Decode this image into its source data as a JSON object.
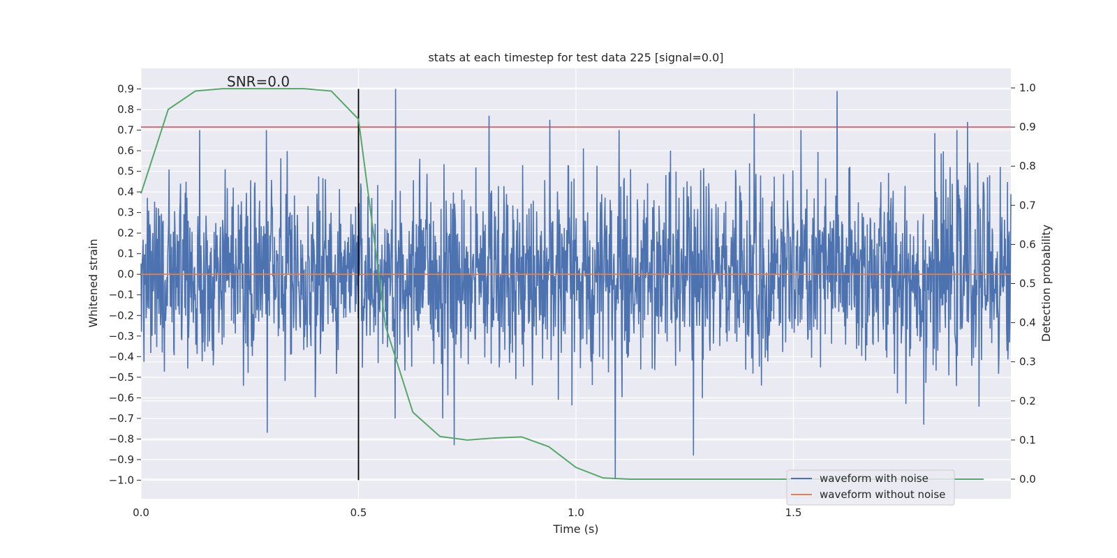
{
  "chart_data": {
    "type": "line",
    "title": "stats at each timestep for test data 225 [signal=0.0]",
    "xlabel": "Time (s)",
    "ylabel_left": "Whitened strain",
    "ylabel_right": "Detection probability",
    "annotation": "SNR=0.0",
    "xlim": [
      0.0,
      2.0
    ],
    "ylim_left": [
      -1.09,
      1.0
    ],
    "ylim_right": [
      -0.05,
      1.05
    ],
    "x_ticks": [
      0.0,
      0.5,
      1.0,
      1.5
    ],
    "x_tick_labels": [
      "0.0",
      "0.5",
      "1.0",
      "1.5"
    ],
    "y_left_ticks": [
      0.9,
      0.8,
      0.7,
      0.6,
      0.5,
      0.4,
      0.3,
      0.2,
      0.1,
      0.0,
      -0.1,
      -0.2,
      -0.3,
      -0.4,
      -0.5,
      -0.6,
      -0.7,
      -0.8,
      -0.9,
      -1.0
    ],
    "y_left_tick_labels": [
      "0.9",
      "0.8",
      "0.7",
      "0.6",
      "0.5",
      "0.4",
      "0.3",
      "0.2",
      "0.1",
      "0.0",
      "−0.1",
      "−0.2",
      "−0.3",
      "−0.4",
      "−0.5",
      "−0.6",
      "−0.7",
      "−0.8",
      "−0.9",
      "−1.0"
    ],
    "y_right_ticks": [
      1.0,
      0.9,
      0.8,
      0.7,
      0.6,
      0.5,
      0.4,
      0.3,
      0.2,
      0.1,
      0.0
    ],
    "y_right_tick_labels": [
      "1.0",
      "0.9",
      "0.8",
      "0.7",
      "0.6",
      "0.5",
      "0.4",
      "0.3",
      "0.2",
      "0.1",
      "0.0"
    ],
    "threshold_right": 0.9,
    "marker_time": 0.5,
    "marker_range_left": [
      -1.0,
      0.9
    ],
    "series": [
      {
        "name": "waveform with noise",
        "axis": "left",
        "color": "#4c72b0",
        "kind": "noise",
        "n_points": 2048,
        "x_range": [
          0.0,
          2.0
        ],
        "std": 0.23,
        "seed": 225,
        "spikes": [
          {
            "x": 0.585,
            "y": 0.9
          },
          {
            "x": 0.8,
            "y": 0.77
          },
          {
            "x": 0.94,
            "y": 0.75
          },
          {
            "x": 1.09,
            "y": -0.99
          },
          {
            "x": 1.27,
            "y": -0.88
          },
          {
            "x": 1.41,
            "y": 0.78
          },
          {
            "x": 1.6,
            "y": 0.89
          },
          {
            "x": 1.9,
            "y": 0.74
          },
          {
            "x": 0.29,
            "y": -0.77
          },
          {
            "x": 0.72,
            "y": -0.83
          },
          {
            "x": 1.8,
            "y": -0.73
          }
        ]
      },
      {
        "name": "waveform without noise",
        "axis": "left",
        "color": "#dd8452",
        "kind": "constant",
        "value": 0.0,
        "x_range": [
          0.0,
          2.0
        ]
      },
      {
        "name": "detection probability",
        "axis": "right",
        "color": "#55a868",
        "x": [
          0.0,
          0.0625,
          0.125,
          0.1875,
          0.25,
          0.3125,
          0.375,
          0.4375,
          0.5,
          0.5625,
          0.625,
          0.6875,
          0.75,
          0.8125,
          0.875,
          0.9375,
          1.0,
          1.0625,
          1.125,
          1.1875,
          1.25,
          1.3125,
          1.375,
          1.4375,
          1.5,
          1.5625,
          1.625,
          1.6875,
          1.75,
          1.8125,
          1.875,
          1.9375
        ],
        "y": [
          0.73,
          0.945,
          0.992,
          0.998,
          0.998,
          0.998,
          0.998,
          0.992,
          0.92,
          0.39,
          0.171,
          0.109,
          0.1,
          0.105,
          0.108,
          0.083,
          0.03,
          0.003,
          0.0,
          0.0,
          0.0,
          0.0,
          0.0,
          0.0,
          0.0,
          0.0,
          0.0,
          0.0,
          0.0,
          0.0,
          0.0,
          0.0
        ]
      }
    ],
    "legend": {
      "placement": "bottom-right",
      "entries": [
        {
          "label": "waveform with noise",
          "color": "#4c72b0"
        },
        {
          "label": "waveform without noise",
          "color": "#dd8452"
        }
      ]
    },
    "threshold_color": "#c44e52",
    "marker_color": "#000000",
    "background_color": "#eaeaf2",
    "grid_color": "#ffffff"
  }
}
